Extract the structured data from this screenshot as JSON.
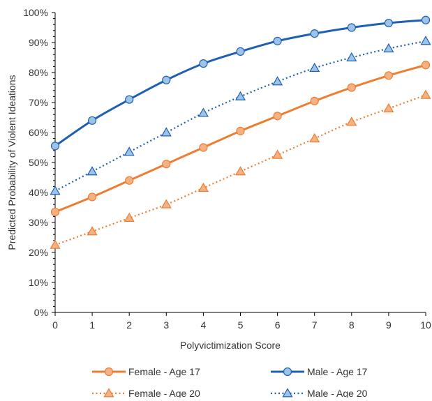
{
  "chart_data": {
    "type": "line",
    "title": "",
    "xlabel": "Polyvictimization Score",
    "ylabel": "Predicted Probability of Violent Ideations",
    "x": [
      0,
      1,
      2,
      3,
      4,
      5,
      6,
      7,
      8,
      9,
      10
    ],
    "x_tick_labels": [
      "0",
      "1",
      "2",
      "3",
      "4",
      "5",
      "6",
      "7",
      "8",
      "9",
      "10"
    ],
    "xlim": [
      0,
      10
    ],
    "ylim": [
      0,
      100
    ],
    "y_ticks": [
      0,
      10,
      20,
      30,
      40,
      50,
      60,
      70,
      80,
      90,
      100
    ],
    "y_tick_labels": [
      "0%",
      "10%",
      "20%",
      "30%",
      "40%",
      "50%",
      "60%",
      "70%",
      "80%",
      "90%",
      "100%"
    ],
    "grid": false,
    "legend_position": "bottom",
    "series": [
      {
        "name": "Female - Age 17",
        "values": [
          33.5,
          38.5,
          44,
          49.5,
          55,
          60.5,
          65.5,
          70.5,
          75,
          79,
          82.5
        ],
        "color": "#ED7D31",
        "marker": "circle",
        "line_style": "solid"
      },
      {
        "name": "Male - Age 17",
        "values": [
          55.5,
          64,
          71,
          77.5,
          83,
          87,
          90.5,
          93,
          95,
          96.5,
          97.5
        ],
        "color": "#1F5FB4",
        "marker": "circle",
        "line_style": "solid"
      },
      {
        "name": "Female - Age 20",
        "values": [
          22.5,
          27,
          31.5,
          36,
          41.5,
          47,
          52.5,
          58,
          63.5,
          68,
          72.5
        ],
        "color": "#ED7D31",
        "marker": "triangle",
        "line_style": "dotted"
      },
      {
        "name": "Male - Age 20",
        "values": [
          40.5,
          47,
          53.5,
          60,
          66.5,
          72,
          77,
          81.5,
          85,
          88,
          90.5
        ],
        "color": "#1F5FB4",
        "marker": "triangle",
        "line_style": "dotted"
      }
    ]
  }
}
